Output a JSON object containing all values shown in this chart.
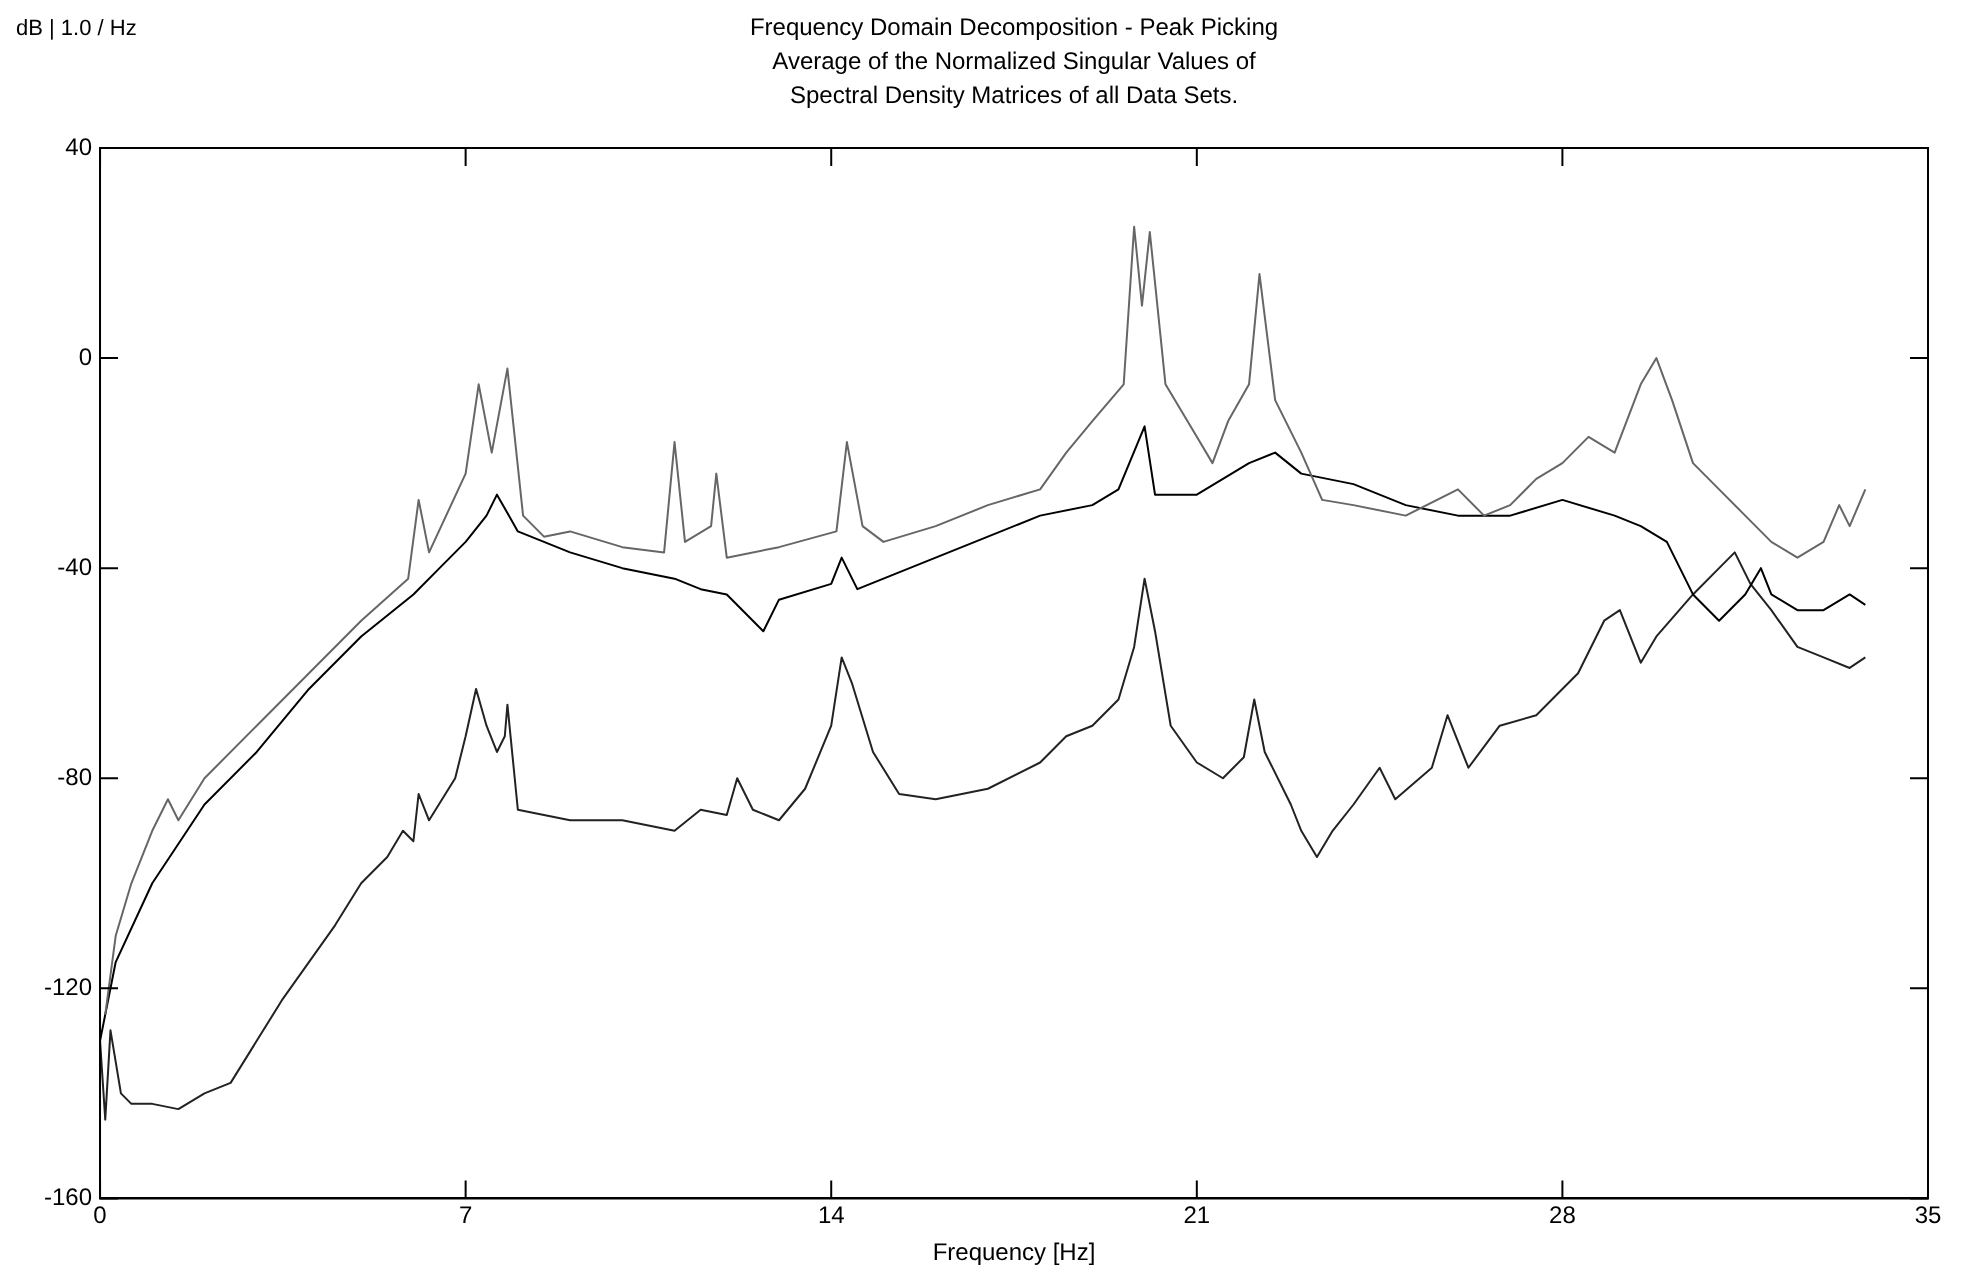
{
  "chart_data": {
    "type": "line",
    "title": "Frequency Domain Decomposition - Peak Picking",
    "subtitle": "Average of the Normalized Singular Values of\nSpectral Density Matrices of all Data Sets.",
    "xlabel": "Frequency [Hz]",
    "ylabel": "dB | 1.0 / Hz",
    "xlim": [
      0,
      35
    ],
    "xticks": [
      0,
      7,
      14,
      21,
      28,
      35
    ],
    "ylim": [
      -160,
      40
    ],
    "yticks": [
      -160,
      -120,
      -80,
      -40,
      0,
      40
    ],
    "grid": false,
    "legend": false,
    "marker": "none",
    "line_style": "solid",
    "series": [
      {
        "color": "#666666",
        "x": [
          0.1,
          0.3,
          0.6,
          1.0,
          1.3,
          1.5,
          2,
          3,
          4,
          5,
          5.9,
          6.1,
          6.3,
          7.0,
          7.25,
          7.5,
          7.8,
          8.1,
          8.5,
          9,
          10,
          10.8,
          11.0,
          11.2,
          11.7,
          11.8,
          12,
          13,
          14.1,
          14.3,
          14.6,
          15,
          16,
          17,
          18,
          18.5,
          19,
          19.6,
          19.8,
          19.95,
          20.1,
          20.4,
          21,
          21.3,
          21.6,
          22.0,
          22.2,
          22.5,
          23,
          23.4,
          24,
          25,
          26,
          26.5,
          27,
          27.5,
          28,
          28.5,
          29,
          29.5,
          29.8,
          30.1,
          30.5,
          31,
          31.5,
          32,
          32.5,
          33,
          33.3,
          33.5,
          33.8
        ],
        "values": [
          -125,
          -110,
          -100,
          -90,
          -84,
          -88,
          -80,
          -70,
          -60,
          -50,
          -42,
          -27,
          -37,
          -22,
          -5,
          -18,
          -2,
          -30,
          -34,
          -33,
          -36,
          -37,
          -16,
          -35,
          -32,
          -22,
          -38,
          -36,
          -33,
          -16,
          -32,
          -35,
          -32,
          -28,
          -25,
          -18,
          -12,
          -5,
          25,
          10,
          24,
          -5,
          -15,
          -20,
          -12,
          -5,
          16,
          -8,
          -18,
          -27,
          -28,
          -30,
          -25,
          -30,
          -28,
          -23,
          -20,
          -15,
          -18,
          -5,
          0,
          -8,
          -20,
          -25,
          -30,
          -35,
          -38,
          -35,
          -28,
          -32,
          -25
        ]
      },
      {
        "color": "#000000",
        "x": [
          0,
          0.3,
          1,
          2,
          3,
          4,
          5,
          6,
          6.5,
          7,
          7.4,
          7.6,
          8,
          9,
          10,
          11,
          11.5,
          12,
          12.7,
          13,
          14,
          14.2,
          14.5,
          15,
          16,
          17,
          18,
          19,
          19.5,
          20,
          20.2,
          21,
          22,
          22.5,
          23,
          24,
          25,
          26,
          27,
          28,
          29,
          29.5,
          30,
          30.5,
          31,
          31.5,
          31.8,
          32,
          32.5,
          33,
          33.5,
          33.8
        ],
        "values": [
          -130,
          -115,
          -100,
          -85,
          -75,
          -63,
          -53,
          -45,
          -40,
          -35,
          -30,
          -26,
          -33,
          -37,
          -40,
          -42,
          -44,
          -45,
          -52,
          -46,
          -43,
          -38,
          -44,
          -42,
          -38,
          -34,
          -30,
          -28,
          -25,
          -13,
          -26,
          -26,
          -20,
          -18,
          -22,
          -24,
          -28,
          -30,
          -30,
          -27,
          -30,
          -32,
          -35,
          -45,
          -50,
          -45,
          -40,
          -45,
          -48,
          -48,
          -45,
          -47
        ]
      },
      {
        "color": "#222222",
        "x": [
          0,
          0.1,
          0.2,
          0.4,
          0.6,
          1,
          1.5,
          2,
          2.5,
          3,
          3.5,
          4,
          4.5,
          5,
          5.5,
          5.8,
          6,
          6.1,
          6.3,
          6.8,
          7,
          7.2,
          7.4,
          7.6,
          7.75,
          7.8,
          8,
          8.5,
          9,
          10,
          11,
          11.5,
          12,
          12.2,
          12.5,
          13,
          13.5,
          14,
          14.2,
          14.4,
          14.8,
          15.3,
          16,
          17,
          18,
          18.5,
          19,
          19.5,
          19.8,
          20,
          20.2,
          20.5,
          21,
          21.5,
          21.9,
          22.1,
          22.3,
          22.8,
          23,
          23.3,
          23.6,
          24,
          24.5,
          24.8,
          25.5,
          25.8,
          26.2,
          26.8,
          27.5,
          28.3,
          28.8,
          29.1,
          29.5,
          29.8,
          30.5,
          31,
          31.3,
          31.6,
          32,
          32.5,
          33,
          33.5,
          33.8
        ],
        "values": [
          -130,
          -145,
          -128,
          -140,
          -142,
          -142,
          -143,
          -140,
          -138,
          -130,
          -122,
          -115,
          -108,
          -100,
          -95,
          -90,
          -92,
          -83,
          -88,
          -80,
          -72,
          -63,
          -70,
          -75,
          -72,
          -66,
          -86,
          -87,
          -88,
          -88,
          -90,
          -86,
          -87,
          -80,
          -86,
          -88,
          -82,
          -70,
          -57,
          -62,
          -75,
          -83,
          -84,
          -82,
          -77,
          -72,
          -70,
          -65,
          -55,
          -42,
          -52,
          -70,
          -77,
          -80,
          -76,
          -65,
          -75,
          -85,
          -90,
          -95,
          -90,
          -85,
          -78,
          -84,
          -78,
          -68,
          -78,
          -70,
          -68,
          -60,
          -50,
          -48,
          -58,
          -53,
          -45,
          -40,
          -37,
          -43,
          -48,
          -55,
          -57,
          -59,
          -57
        ]
      }
    ]
  }
}
